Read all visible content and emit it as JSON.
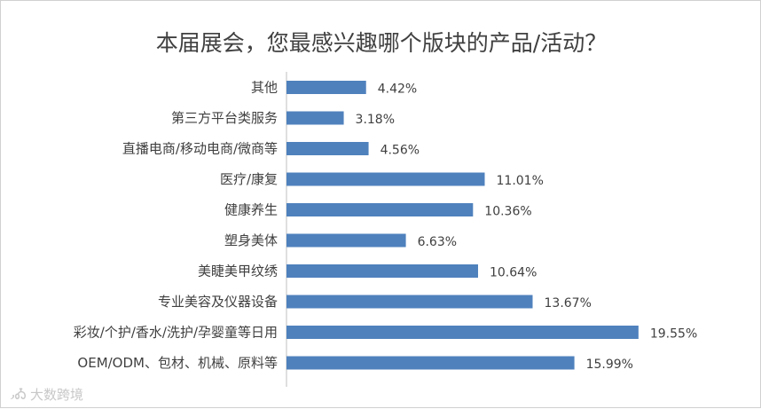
{
  "watermark": "大数跨境",
  "chart_data": {
    "type": "bar",
    "orientation": "horizontal",
    "title": "本届展会，您最感兴趣哪个版块的产品/活动？",
    "categories": [
      "其他",
      "第三方平台类服务",
      "直播电商/移动电商/微商等",
      "医疗/康复",
      "健康养生",
      "塑身美体",
      "美睫美甲纹绣",
      "专业美容及仪器设备",
      "彩妆/个护/香水/洗护/孕婴童等日用",
      "OEM/ODM、包材、机械、原料等"
    ],
    "values": [
      4.42,
      3.18,
      4.56,
      11.01,
      10.36,
      6.63,
      10.64,
      13.67,
      19.55,
      15.99
    ],
    "value_labels": [
      "4.42%",
      "3.18%",
      "4.56%",
      "11.01%",
      "10.36%",
      "6.63%",
      "10.64%",
      "13.67%",
      "19.55%",
      "15.99%"
    ],
    "unit": "%",
    "xlim": [
      0,
      20
    ],
    "grid": false,
    "legend": "none",
    "bar_color": "#4f81bd"
  }
}
